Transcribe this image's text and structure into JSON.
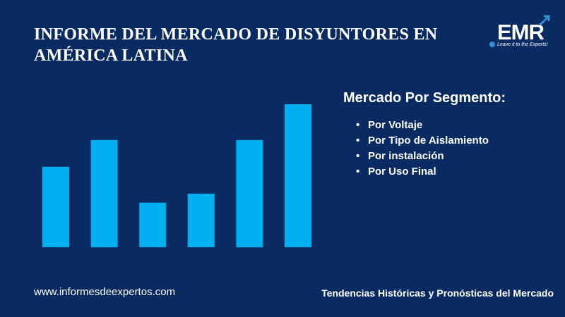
{
  "title": {
    "line1": "INFORME DEL MERCADO DE DISYUNTORES EN",
    "line2": "AMÉRICA LATINA"
  },
  "logo": {
    "text": "EMR",
    "tagline": "Leave it to the Experts!"
  },
  "segment": {
    "title": "Mercado Por Segmento:",
    "items": [
      "Por Voltaje",
      "Por Tipo de Aislamiento",
      "Por instalación",
      "Por Uso Final"
    ]
  },
  "footer": {
    "website": "www.informesdeexpertos.com",
    "tagline": "Tendencias Históricas y Pronósticas del Mercado"
  },
  "colors": {
    "background": "#0a2a62",
    "bar": "#00b0f0"
  },
  "chart_data": {
    "type": "bar",
    "categories": [
      "",
      "",
      "",
      "",
      "",
      ""
    ],
    "values": [
      4.5,
      6.0,
      2.5,
      3.0,
      6.0,
      8.0
    ],
    "ylim": [
      0,
      8
    ],
    "title": "",
    "xlabel": "",
    "ylabel": "",
    "grid": false
  }
}
